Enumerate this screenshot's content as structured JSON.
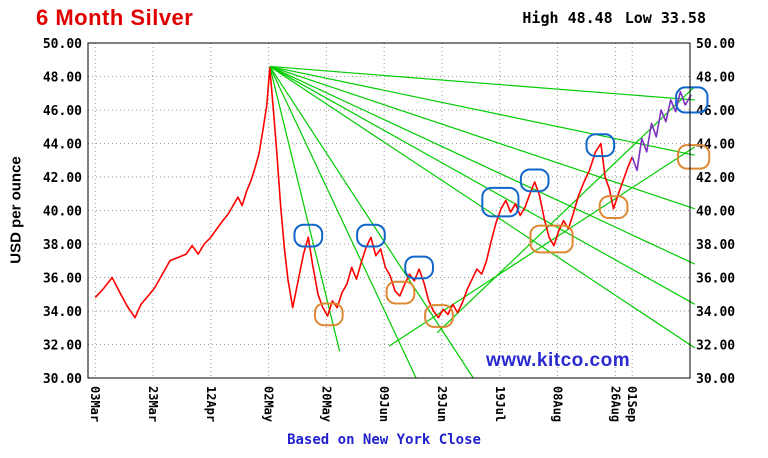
{
  "chart_data": {
    "type": "line",
    "title": "6 Month Silver",
    "header": {
      "high_label": "High",
      "high_value": "48.48",
      "low_label": "Low",
      "low_value": "33.58"
    },
    "high": 48.48,
    "low": 33.58,
    "ylabel": "USD per ounce",
    "caption": "Based on New York Close",
    "watermark": "www.kitco.com",
    "ylim": [
      30,
      50
    ],
    "ytick_step": 2,
    "grid": true,
    "colors": {
      "price": "#ff0000",
      "projection": "#7d2fc0",
      "trend": "#00cc00",
      "blue_box": "#1166cc",
      "orange_box": "#dd8833",
      "grid": "#999999",
      "border": "#000000"
    },
    "xticks": [
      {
        "label": "03Mar",
        "pct": 1.2
      },
      {
        "label": "23Mar",
        "pct": 10.8
      },
      {
        "label": "12Apr",
        "pct": 20.4
      },
      {
        "label": "02May",
        "pct": 30.0
      },
      {
        "label": "20May",
        "pct": 39.6
      },
      {
        "label": "09Jun",
        "pct": 49.2
      },
      {
        "label": "29Jun",
        "pct": 58.8
      },
      {
        "label": "19Jul",
        "pct": 68.4
      },
      {
        "label": "08Aug",
        "pct": 78.0
      },
      {
        "label": "26Aug",
        "pct": 87.6
      },
      {
        "label": "01Sep",
        "pct": 90.4
      }
    ],
    "series": [
      {
        "name": "price",
        "color": "#ff0000",
        "points": [
          [
            1.2,
            34.8
          ],
          [
            2.5,
            35.3
          ],
          [
            4.0,
            36.0
          ],
          [
            5.3,
            35.1
          ],
          [
            6.5,
            34.3
          ],
          [
            7.8,
            33.6
          ],
          [
            8.8,
            34.4
          ],
          [
            10.0,
            34.9
          ],
          [
            11.1,
            35.4
          ],
          [
            12.5,
            36.3
          ],
          [
            13.6,
            37.0
          ],
          [
            15.0,
            37.2
          ],
          [
            16.3,
            37.4
          ],
          [
            17.3,
            37.9
          ],
          [
            18.3,
            37.4
          ],
          [
            19.3,
            38.0
          ],
          [
            20.4,
            38.4
          ],
          [
            21.4,
            38.9
          ],
          [
            22.4,
            39.4
          ],
          [
            23.3,
            39.8
          ],
          [
            24.1,
            40.3
          ],
          [
            24.9,
            40.8
          ],
          [
            25.6,
            40.3
          ],
          [
            26.4,
            41.2
          ],
          [
            27.1,
            41.8
          ],
          [
            27.7,
            42.5
          ],
          [
            28.4,
            43.4
          ],
          [
            29.1,
            44.9
          ],
          [
            29.7,
            46.3
          ],
          [
            30.2,
            48.5
          ],
          [
            30.8,
            46.0
          ],
          [
            31.4,
            43.3
          ],
          [
            32.0,
            40.3
          ],
          [
            32.6,
            37.8
          ],
          [
            33.2,
            35.9
          ],
          [
            34.0,
            34.2
          ],
          [
            34.9,
            35.8
          ],
          [
            35.8,
            37.4
          ],
          [
            36.6,
            38.4
          ],
          [
            37.3,
            36.8
          ],
          [
            38.2,
            35.0
          ],
          [
            39.0,
            34.2
          ],
          [
            39.8,
            33.7
          ],
          [
            40.6,
            34.6
          ],
          [
            41.4,
            34.2
          ],
          [
            42.2,
            35.1
          ],
          [
            43.0,
            35.6
          ],
          [
            43.8,
            36.6
          ],
          [
            44.6,
            35.9
          ],
          [
            45.4,
            36.9
          ],
          [
            46.2,
            37.8
          ],
          [
            47.0,
            38.4
          ],
          [
            47.8,
            37.3
          ],
          [
            48.6,
            37.7
          ],
          [
            49.4,
            36.6
          ],
          [
            50.2,
            36.1
          ],
          [
            51.0,
            35.2
          ],
          [
            51.8,
            34.9
          ],
          [
            52.6,
            35.6
          ],
          [
            53.4,
            36.2
          ],
          [
            54.2,
            35.8
          ],
          [
            55.0,
            36.5
          ],
          [
            55.8,
            35.7
          ],
          [
            56.6,
            34.6
          ],
          [
            57.4,
            34.0
          ],
          [
            58.2,
            33.6
          ],
          [
            59.0,
            34.1
          ],
          [
            59.8,
            33.8
          ],
          [
            60.6,
            34.4
          ],
          [
            61.4,
            33.9
          ],
          [
            62.2,
            34.5
          ],
          [
            63.0,
            35.3
          ],
          [
            63.8,
            35.9
          ],
          [
            64.6,
            36.5
          ],
          [
            65.4,
            36.2
          ],
          [
            66.2,
            37.0
          ],
          [
            67.0,
            38.2
          ],
          [
            67.8,
            39.3
          ],
          [
            68.6,
            40.1
          ],
          [
            69.4,
            40.6
          ],
          [
            70.2,
            39.9
          ],
          [
            71.0,
            40.4
          ],
          [
            71.8,
            39.7
          ],
          [
            72.6,
            40.2
          ],
          [
            73.4,
            41.0
          ],
          [
            74.2,
            41.7
          ],
          [
            75.0,
            40.9
          ],
          [
            75.8,
            39.5
          ],
          [
            76.6,
            38.4
          ],
          [
            77.4,
            37.9
          ],
          [
            78.2,
            38.8
          ],
          [
            79.0,
            39.4
          ],
          [
            79.8,
            38.9
          ],
          [
            80.6,
            39.8
          ],
          [
            81.5,
            40.9
          ],
          [
            82.4,
            41.7
          ],
          [
            83.3,
            42.4
          ],
          [
            84.3,
            43.5
          ],
          [
            85.2,
            44.0
          ],
          [
            85.9,
            42.0
          ],
          [
            86.6,
            41.3
          ],
          [
            87.3,
            40.1
          ],
          [
            88.1,
            41.0
          ],
          [
            88.9,
            41.8
          ],
          [
            89.7,
            42.6
          ],
          [
            90.4,
            43.2
          ]
        ]
      },
      {
        "name": "projection",
        "color": "#7d2fc0",
        "points": [
          [
            90.4,
            43.2
          ],
          [
            91.2,
            42.4
          ],
          [
            92.0,
            44.3
          ],
          [
            92.8,
            43.5
          ],
          [
            93.6,
            45.2
          ],
          [
            94.4,
            44.4
          ],
          [
            95.2,
            46.0
          ],
          [
            96.0,
            45.3
          ],
          [
            96.8,
            46.6
          ],
          [
            97.6,
            45.9
          ],
          [
            98.4,
            47.1
          ],
          [
            99.2,
            46.3
          ],
          [
            100.2,
            46.9
          ]
        ]
      }
    ],
    "trendlines": {
      "color": "#00cc00",
      "lines": [
        [
          [
            30.2,
            48.6
          ],
          [
            100.8,
            46.6
          ]
        ],
        [
          [
            30.2,
            48.6
          ],
          [
            100.8,
            43.3
          ]
        ],
        [
          [
            30.2,
            48.6
          ],
          [
            100.8,
            40.1
          ]
        ],
        [
          [
            30.2,
            48.6
          ],
          [
            100.8,
            36.8
          ]
        ],
        [
          [
            30.2,
            48.6
          ],
          [
            100.8,
            34.4
          ]
        ],
        [
          [
            30.2,
            48.6
          ],
          [
            100.8,
            31.8
          ]
        ],
        [
          [
            30.2,
            48.6
          ],
          [
            41.8,
            31.6
          ]
        ],
        [
          [
            30.2,
            48.6
          ],
          [
            54.5,
            30.0
          ]
        ],
        [
          [
            30.2,
            48.6
          ],
          [
            64.0,
            30.0
          ]
        ],
        [
          [
            50.0,
            31.9
          ],
          [
            100.8,
            43.8
          ]
        ],
        [
          [
            58.0,
            32.7
          ],
          [
            100.8,
            47.4
          ]
        ]
      ]
    },
    "annotations": {
      "blue_boxes": {
        "color": "#1166cc",
        "boxes": [
          [
            36.6,
            38.5,
            4.6,
            1.3
          ],
          [
            47.0,
            38.5,
            4.6,
            1.3
          ],
          [
            55.0,
            36.6,
            4.6,
            1.3
          ],
          [
            68.5,
            40.5,
            6.0,
            1.7
          ],
          [
            74.2,
            41.8,
            4.6,
            1.3
          ],
          [
            85.1,
            43.9,
            4.6,
            1.3
          ],
          [
            100.3,
            46.6,
            5.2,
            1.5
          ]
        ]
      },
      "orange_boxes": {
        "color": "#dd8833",
        "boxes": [
          [
            40.0,
            33.8,
            4.6,
            1.3
          ],
          [
            51.9,
            35.1,
            4.6,
            1.3
          ],
          [
            58.3,
            33.7,
            4.6,
            1.3
          ],
          [
            77.0,
            38.3,
            7.0,
            1.6
          ],
          [
            87.3,
            40.2,
            4.6,
            1.3
          ],
          [
            100.6,
            43.2,
            5.2,
            1.4
          ]
        ]
      }
    }
  }
}
